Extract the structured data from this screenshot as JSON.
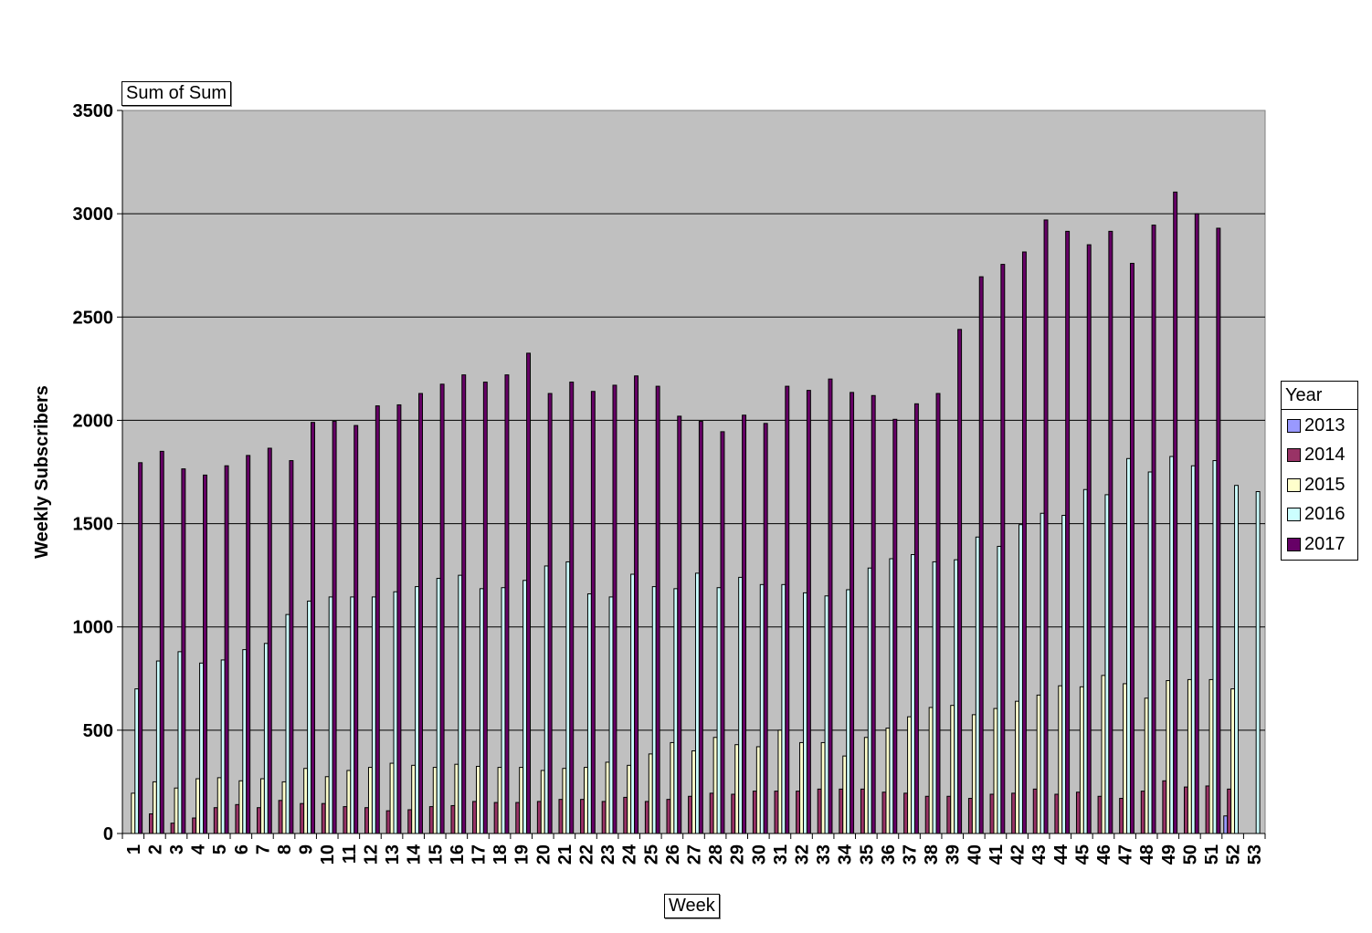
{
  "chart_data": {
    "type": "bar",
    "title": "",
    "field_button": "Sum of Sum",
    "xlabel": "Week",
    "ylabel": "Weekly Subscribers",
    "ylim": [
      0,
      3500
    ],
    "yticks": [
      0,
      500,
      1000,
      1500,
      2000,
      2500,
      3000,
      3500
    ],
    "grid": true,
    "legend": {
      "title": "Year",
      "position": "right"
    },
    "categories": [
      "1",
      "2",
      "3",
      "4",
      "5",
      "6",
      "7",
      "8",
      "9",
      "10",
      "11",
      "12",
      "13",
      "14",
      "15",
      "16",
      "17",
      "18",
      "19",
      "20",
      "21",
      "22",
      "23",
      "24",
      "25",
      "26",
      "27",
      "28",
      "29",
      "30",
      "31",
      "32",
      "33",
      "34",
      "35",
      "36",
      "37",
      "38",
      "39",
      "40",
      "41",
      "42",
      "43",
      "44",
      "45",
      "46",
      "47",
      "48",
      "49",
      "50",
      "51",
      "52",
      "53"
    ],
    "series": [
      {
        "name": "2013",
        "color": "#9999ff",
        "values": [
          null,
          null,
          null,
          null,
          null,
          null,
          null,
          null,
          null,
          null,
          null,
          null,
          null,
          null,
          null,
          null,
          null,
          null,
          null,
          null,
          null,
          null,
          null,
          null,
          null,
          null,
          null,
          null,
          null,
          null,
          null,
          null,
          null,
          null,
          null,
          null,
          null,
          null,
          null,
          null,
          null,
          null,
          null,
          null,
          null,
          null,
          null,
          null,
          null,
          null,
          null,
          85,
          null
        ]
      },
      {
        "name": "2014",
        "color": "#993366",
        "values": [
          null,
          95,
          50,
          75,
          125,
          140,
          125,
          160,
          145,
          145,
          130,
          125,
          110,
          115,
          130,
          135,
          155,
          150,
          150,
          155,
          165,
          165,
          155,
          175,
          155,
          165,
          180,
          195,
          190,
          205,
          205,
          205,
          215,
          215,
          215,
          200,
          195,
          180,
          180,
          170,
          190,
          195,
          215,
          190,
          200,
          180,
          170,
          205,
          255,
          225,
          230,
          215,
          null
        ]
      },
      {
        "name": "2015",
        "color": "#ffffcc",
        "values": [
          195,
          250,
          220,
          265,
          270,
          255,
          265,
          250,
          315,
          275,
          305,
          320,
          340,
          330,
          320,
          335,
          325,
          320,
          320,
          305,
          315,
          320,
          345,
          330,
          385,
          440,
          400,
          465,
          430,
          420,
          500,
          440,
          440,
          375,
          465,
          510,
          565,
          610,
          620,
          575,
          605,
          640,
          670,
          715,
          710,
          765,
          725,
          655,
          740,
          745,
          745,
          700,
          null
        ]
      },
      {
        "name": "2016",
        "color": "#ccffff",
        "values": [
          700,
          835,
          880,
          825,
          840,
          890,
          920,
          1060,
          1125,
          1145,
          1145,
          1145,
          1170,
          1195,
          1235,
          1250,
          1185,
          1190,
          1225,
          1295,
          1315,
          1160,
          1145,
          1255,
          1195,
          1185,
          1260,
          1190,
          1240,
          1205,
          1205,
          1165,
          1150,
          1180,
          1285,
          1330,
          1350,
          1315,
          1325,
          1435,
          1390,
          1495,
          1550,
          1540,
          1665,
          1640,
          1815,
          1750,
          1825,
          1780,
          1805,
          1685,
          1655
        ]
      },
      {
        "name": "2017",
        "color": "#660066",
        "values": [
          1795,
          1850,
          1765,
          1735,
          1780,
          1830,
          1865,
          1805,
          1990,
          1995,
          1975,
          2070,
          2075,
          2130,
          2175,
          2220,
          2185,
          2220,
          2325,
          2130,
          2185,
          2140,
          2170,
          2215,
          2165,
          2020,
          1995,
          1945,
          2025,
          1985,
          2165,
          2145,
          2200,
          2135,
          2120,
          2005,
          2080,
          2130,
          2440,
          2695,
          2755,
          2815,
          2970,
          2915,
          2850,
          2915,
          2760,
          2945,
          3105,
          3000,
          2930,
          null,
          null
        ]
      }
    ]
  }
}
